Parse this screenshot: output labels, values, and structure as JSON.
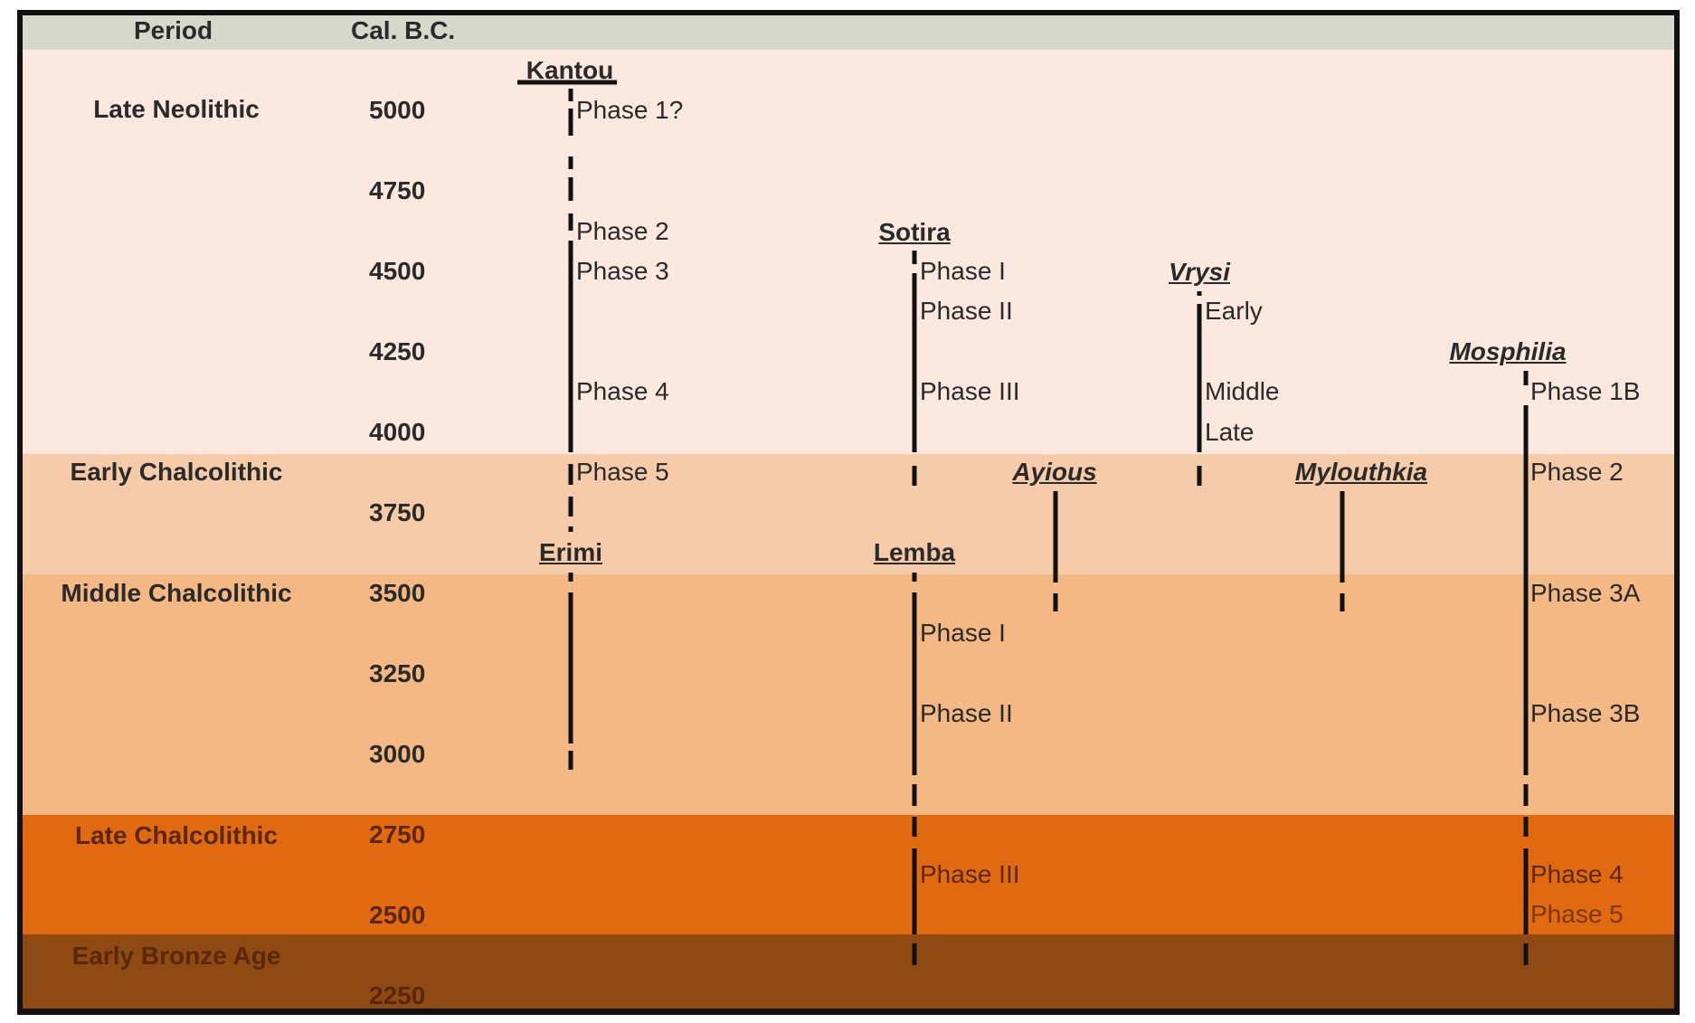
{
  "header": {
    "period": "Period",
    "cal": "Cal. B.C."
  },
  "periods": [
    {
      "label": "Late Neolithic"
    },
    {
      "label": "Early Chalcolithic"
    },
    {
      "label": "Middle Chalcolithic"
    },
    {
      "label": "Late Chalcolithic"
    },
    {
      "label": "Early Bronze Age"
    }
  ],
  "years": [
    "5000",
    "4750",
    "4500",
    "4250",
    "4000",
    "3750",
    "3500",
    "3250",
    "3000",
    "2750",
    "2500",
    "2250"
  ],
  "sites": {
    "kantou": "Kantou",
    "sotira": "Sotira",
    "vrysi": "Vrysi",
    "mosphilia": "Mosphilia",
    "ayious": "Ayious",
    "mylouthkia": "Mylouthkia",
    "erimi": "Erimi",
    "lemba": "Lemba"
  },
  "phases": {
    "kantou": [
      "Phase 1?",
      "Phase 2",
      "Phase 3",
      "Phase 4",
      "Phase 5"
    ],
    "sotira": [
      "Phase I",
      "Phase II",
      "Phase III"
    ],
    "vrysi": [
      "Early",
      "Middle",
      "Late"
    ],
    "mosphilia": [
      "Phase 1B",
      "Phase 2",
      "Phase 3A",
      "Phase 3B",
      "Phase 4",
      "Phase 5"
    ],
    "lemba": [
      "Phase I",
      "Phase II",
      "Phase III"
    ]
  },
  "colors": {
    "header": "#d7d8cc",
    "late_neolithic": "#fbe9df",
    "early_chalcolithic": "#f6cba9",
    "middle_chalcolithic": "#f4b885",
    "late_chalcolithic": "#e1690f",
    "early_bronze_age": "#8e4a12",
    "frame": "#111111"
  }
}
